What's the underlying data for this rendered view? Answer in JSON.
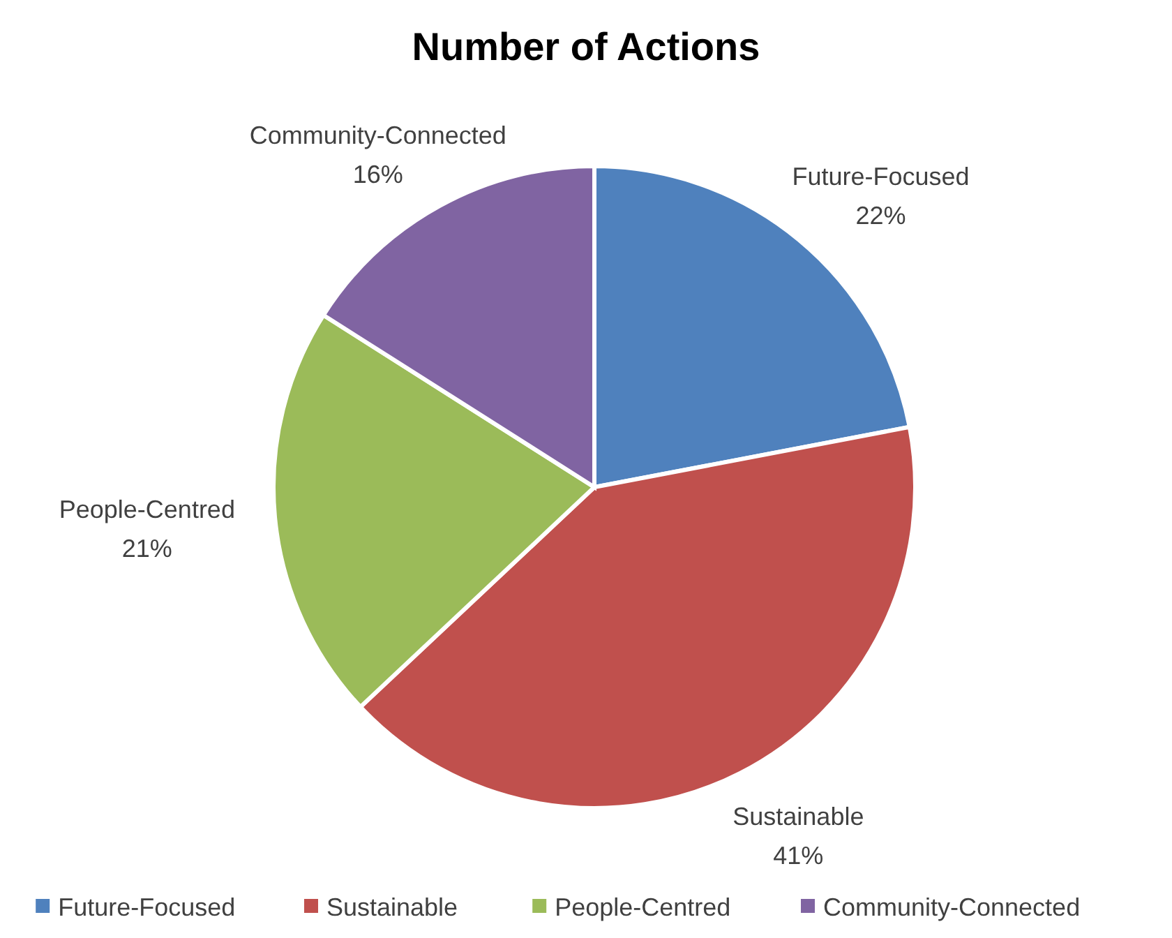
{
  "chart_data": {
    "type": "pie",
    "title": "Number of Actions",
    "categories": [
      "Future-Focused",
      "Sustainable",
      "People-Centred",
      "Community-Connected"
    ],
    "values": [
      22,
      41,
      21,
      16
    ],
    "colors": [
      "#4f81bd",
      "#c0504d",
      "#9bbb59",
      "#8064a2"
    ],
    "value_labels": [
      "22%",
      "41%",
      "21%",
      "16%"
    ],
    "legend": "bottom"
  }
}
